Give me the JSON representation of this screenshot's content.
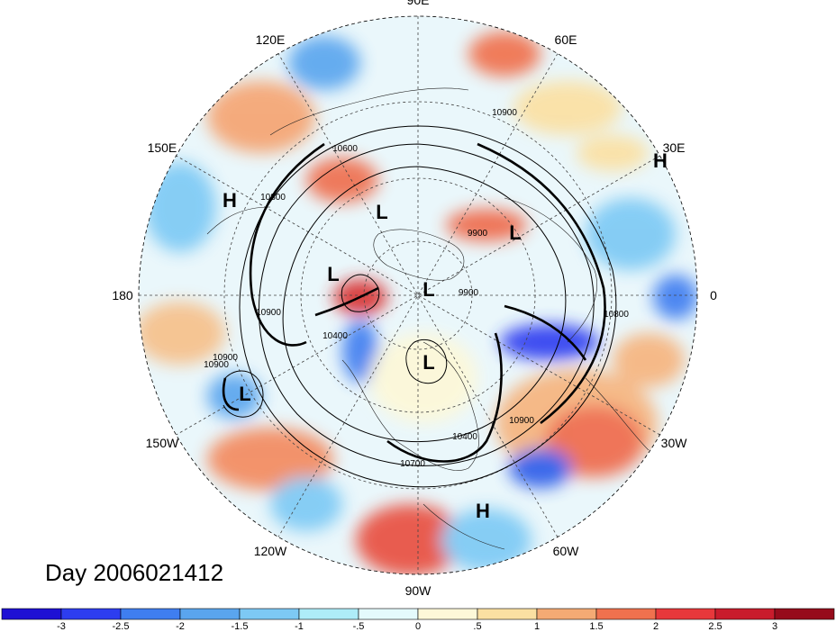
{
  "title": "Day 2006021412",
  "longitude_labels": [
    {
      "text": "90E",
      "angle": -90
    },
    {
      "text": "60E",
      "angle": -60
    },
    {
      "text": "30E",
      "angle": -30
    },
    {
      "text": "0",
      "angle": 0
    },
    {
      "text": "30W",
      "angle": 30
    },
    {
      "text": "60W",
      "angle": 60
    },
    {
      "text": "90W",
      "angle": 90
    },
    {
      "text": "120W",
      "angle": 120
    },
    {
      "text": "150W",
      "angle": 150
    },
    {
      "text": "180",
      "angle": 180
    },
    {
      "text": "150E",
      "angle": 210
    },
    {
      "text": "120E",
      "angle": 240
    }
  ],
  "pressure_centers": [
    {
      "text": "H",
      "lon_label": "150E"
    },
    {
      "text": "H",
      "lon_label": "30E"
    },
    {
      "text": "H",
      "lon_label": "60W"
    },
    {
      "text": "L",
      "lon_label": "120E"
    },
    {
      "text": "L",
      "lon_label": "60E"
    },
    {
      "text": "L",
      "lon_label": "180"
    },
    {
      "text": "L",
      "lon_label": "0"
    },
    {
      "text": "L",
      "lon_label": "90W"
    },
    {
      "text": "L",
      "lon_label": "150W"
    }
  ],
  "contour_labels": [
    "10900",
    "10600",
    "10900",
    "9900",
    "9900",
    "10400",
    "10800",
    "10900",
    "10800",
    "10900",
    "10400",
    "10700",
    "10900"
  ],
  "colorbar": {
    "colors": [
      "#1e10d4",
      "#2d3df0",
      "#3f7ef0",
      "#5aa5ee",
      "#7dc9f4",
      "#aeecf8",
      "#e4fafc",
      "#fdf8d8",
      "#fbe0a2",
      "#f4aa74",
      "#f0714e",
      "#e8383b",
      "#c91c2c",
      "#960b1b"
    ],
    "ticks": [
      "-3",
      "-2.5",
      "-2",
      "-1.5",
      "-1",
      "-.5",
      "0",
      ".5",
      "1",
      "1.5",
      "2",
      "2.5",
      "3"
    ]
  },
  "colors": {
    "ocean_base": "#e8f6fb",
    "contour": "#000000"
  }
}
